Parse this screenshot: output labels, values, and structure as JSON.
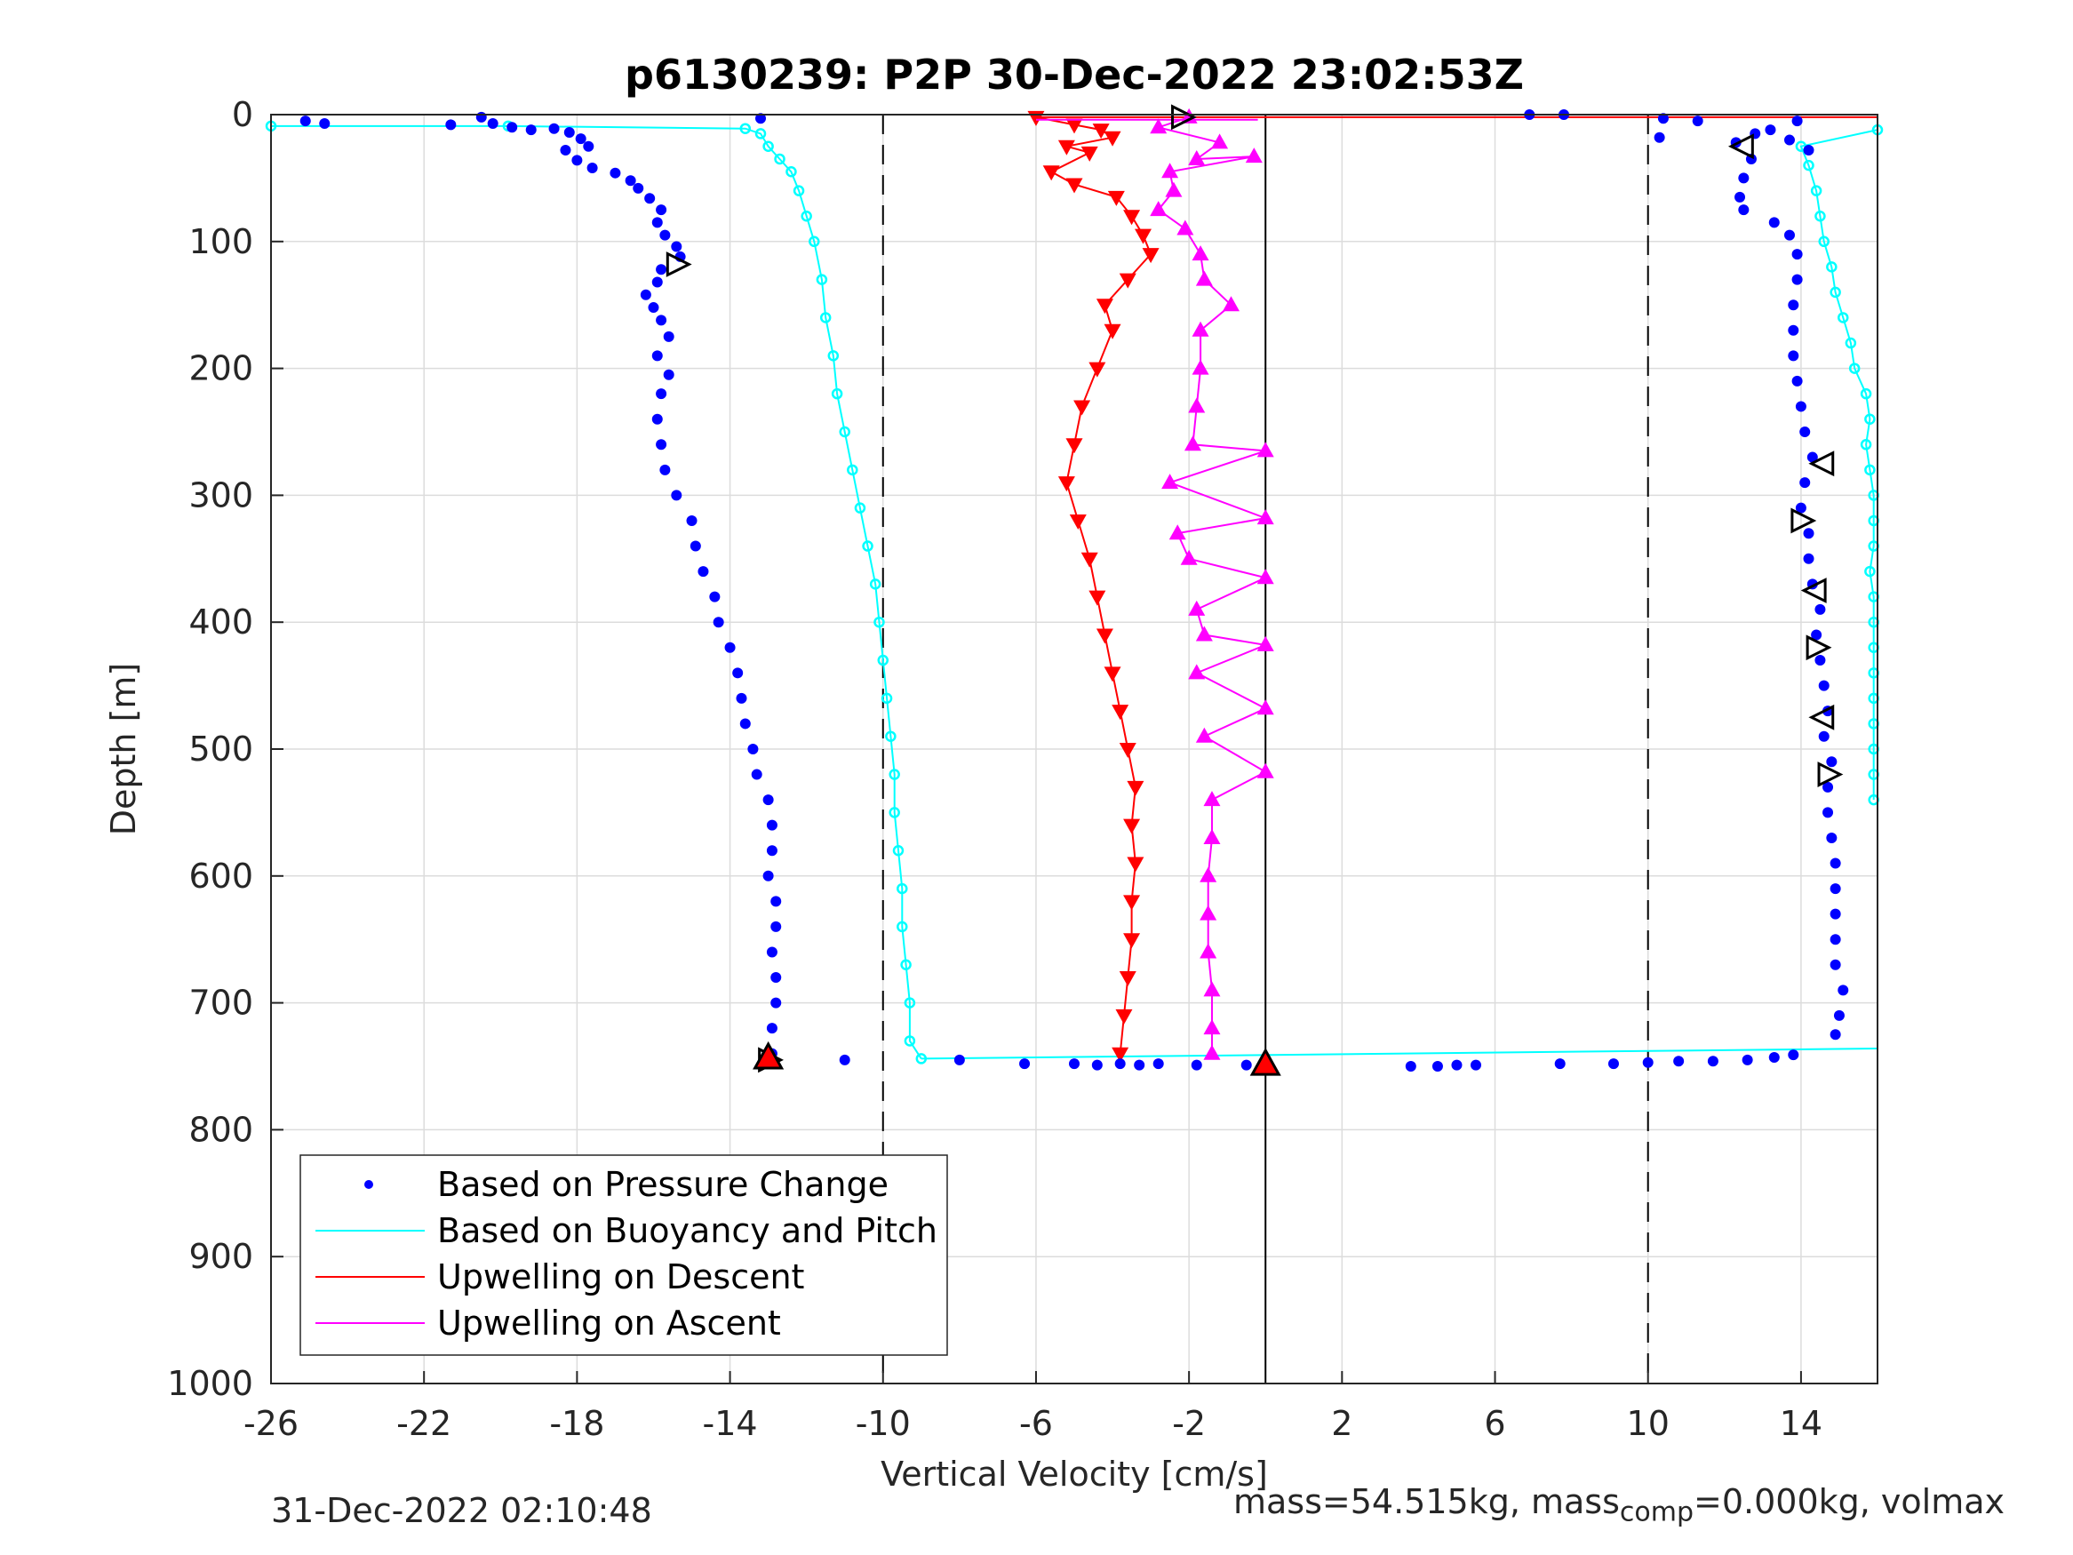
{
  "chart_data": {
    "type": "scatter",
    "title": "p6130239: P2P 30-Dec-2022 23:02:53Z",
    "xlabel": "Vertical Velocity [cm/s]",
    "ylabel": "Depth [m]",
    "xlim": [
      -26,
      16
    ],
    "ylim": [
      0,
      1000
    ],
    "y_reversed": true,
    "x_ticks": [
      -26,
      -22,
      -18,
      -14,
      -10,
      -6,
      -2,
      2,
      6,
      10,
      14
    ],
    "y_ticks": [
      0,
      100,
      200,
      300,
      400,
      500,
      600,
      700,
      800,
      900,
      1000
    ],
    "grid": true,
    "legend_position": "bottom-left",
    "reference_lines": [
      {
        "x": -10,
        "style": "dashed"
      },
      {
        "x": 0,
        "style": "solid"
      },
      {
        "x": 10,
        "style": "dashed"
      }
    ],
    "series": [
      {
        "name": "Based on Pressure Change",
        "color": "#0000ff",
        "marker": "dot",
        "descent": [
          [
            -25.1,
            5
          ],
          [
            -24.6,
            7
          ],
          [
            -20.5,
            2
          ],
          [
            -21.3,
            8
          ],
          [
            -20.2,
            7
          ],
          [
            -19.7,
            10
          ],
          [
            -19.2,
            12
          ],
          [
            -18.6,
            11
          ],
          [
            -18.2,
            14
          ],
          [
            -17.9,
            19
          ],
          [
            -17.7,
            25
          ],
          [
            -18.3,
            28
          ],
          [
            -18.0,
            36
          ],
          [
            -17.6,
            42
          ],
          [
            -17.0,
            46
          ],
          [
            -16.6,
            52
          ],
          [
            -16.4,
            58
          ],
          [
            -16.1,
            66
          ],
          [
            -15.8,
            75
          ],
          [
            -15.9,
            85
          ],
          [
            -15.7,
            95
          ],
          [
            -15.4,
            104
          ],
          [
            -15.3,
            112
          ],
          [
            -15.8,
            122
          ],
          [
            -15.9,
            132
          ],
          [
            -16.2,
            142
          ],
          [
            -16.0,
            152
          ],
          [
            -15.8,
            162
          ],
          [
            -15.6,
            175
          ],
          [
            -15.9,
            190
          ],
          [
            -15.6,
            205
          ],
          [
            -15.8,
            220
          ],
          [
            -15.9,
            240
          ],
          [
            -15.8,
            260
          ],
          [
            -15.7,
            280
          ],
          [
            -15.4,
            300
          ],
          [
            -15.0,
            320
          ],
          [
            -14.9,
            340
          ],
          [
            -14.7,
            360
          ],
          [
            -14.4,
            380
          ],
          [
            -14.3,
            400
          ],
          [
            -14.0,
            420
          ],
          [
            -13.8,
            440
          ],
          [
            -13.7,
            460
          ],
          [
            -13.6,
            480
          ],
          [
            -13.4,
            500
          ],
          [
            -13.3,
            520
          ],
          [
            -13.0,
            540
          ],
          [
            -12.9,
            560
          ],
          [
            -12.9,
            580
          ],
          [
            -13.0,
            600
          ],
          [
            -12.8,
            620
          ],
          [
            -12.8,
            640
          ],
          [
            -12.9,
            660
          ],
          [
            -12.8,
            680
          ],
          [
            -12.8,
            700
          ],
          [
            -12.9,
            720
          ],
          [
            -12.9,
            740
          ]
        ],
        "ascent": [
          [
            12.3,
            22
          ],
          [
            12.7,
            35
          ],
          [
            12.5,
            50
          ],
          [
            12.4,
            65
          ],
          [
            12.5,
            75
          ],
          [
            13.3,
            85
          ],
          [
            13.7,
            95
          ],
          [
            13.9,
            110
          ],
          [
            13.9,
            130
          ],
          [
            13.8,
            150
          ],
          [
            13.8,
            170
          ],
          [
            13.8,
            190
          ],
          [
            13.9,
            210
          ],
          [
            14.0,
            230
          ],
          [
            14.1,
            250
          ],
          [
            14.3,
            270
          ],
          [
            14.1,
            290
          ],
          [
            14.0,
            310
          ],
          [
            14.2,
            330
          ],
          [
            14.2,
            350
          ],
          [
            14.3,
            370
          ],
          [
            14.5,
            390
          ],
          [
            14.4,
            410
          ],
          [
            14.5,
            430
          ],
          [
            14.6,
            450
          ],
          [
            14.7,
            470
          ],
          [
            14.6,
            490
          ],
          [
            14.8,
            510
          ],
          [
            14.7,
            530
          ],
          [
            14.7,
            550
          ],
          [
            14.8,
            570
          ],
          [
            14.9,
            590
          ],
          [
            14.9,
            610
          ],
          [
            14.9,
            630
          ],
          [
            14.9,
            650
          ],
          [
            14.9,
            670
          ],
          [
            15.1,
            690
          ],
          [
            15.0,
            710
          ],
          [
            14.9,
            725
          ]
        ],
        "bottom": [
          [
            -11,
            745
          ],
          [
            -8,
            745
          ],
          [
            -6.3,
            748
          ],
          [
            -5,
            748
          ],
          [
            -4.4,
            749
          ],
          [
            -3.8,
            748
          ],
          [
            -3.3,
            749
          ],
          [
            -2.8,
            748
          ],
          [
            -1.8,
            749
          ],
          [
            -0.5,
            749
          ],
          [
            3.8,
            750
          ],
          [
            4.5,
            750
          ],
          [
            5,
            749
          ],
          [
            5.5,
            749
          ],
          [
            7.7,
            748
          ],
          [
            9.1,
            748
          ],
          [
            10.0,
            747
          ],
          [
            10.8,
            746
          ],
          [
            11.7,
            746
          ],
          [
            12.6,
            745
          ],
          [
            13.3,
            743
          ],
          [
            13.8,
            741
          ]
        ],
        "surface": [
          [
            6.9,
            0
          ],
          [
            7.8,
            0
          ],
          [
            -13.2,
            3
          ],
          [
            10.4,
            3
          ],
          [
            11.3,
            5
          ],
          [
            10.3,
            18
          ],
          [
            12.8,
            15
          ],
          [
            13.7,
            20
          ],
          [
            14.2,
            28
          ],
          [
            13.9,
            5
          ],
          [
            13.2,
            12
          ]
        ]
      },
      {
        "name": "Based on Buoyancy and Pitch",
        "color": "#00ffff",
        "marker": "circle-line",
        "descent": [
          [
            -26.0,
            9
          ],
          [
            -19.8,
            9
          ],
          [
            -13.6,
            11
          ],
          [
            -13.2,
            15
          ],
          [
            -13.0,
            25
          ],
          [
            -12.7,
            35
          ],
          [
            -12.4,
            45
          ],
          [
            -12.2,
            60
          ],
          [
            -12.0,
            80
          ],
          [
            -11.8,
            100
          ],
          [
            -11.6,
            130
          ],
          [
            -11.5,
            160
          ],
          [
            -11.3,
            190
          ],
          [
            -11.2,
            220
          ],
          [
            -11.0,
            250
          ],
          [
            -10.8,
            280
          ],
          [
            -10.6,
            310
          ],
          [
            -10.4,
            340
          ],
          [
            -10.2,
            370
          ],
          [
            -10.1,
            400
          ],
          [
            -10.0,
            430
          ],
          [
            -9.9,
            460
          ],
          [
            -9.8,
            490
          ],
          [
            -9.7,
            520
          ],
          [
            -9.7,
            550
          ],
          [
            -9.6,
            580
          ],
          [
            -9.5,
            610
          ],
          [
            -9.5,
            640
          ],
          [
            -9.4,
            670
          ],
          [
            -9.3,
            700
          ],
          [
            -9.3,
            730
          ],
          [
            -9.0,
            744
          ]
        ],
        "ascent": [
          [
            16.0,
            12
          ],
          [
            14.0,
            25
          ],
          [
            14.2,
            40
          ],
          [
            14.4,
            60
          ],
          [
            14.5,
            80
          ],
          [
            14.6,
            100
          ],
          [
            14.8,
            120
          ],
          [
            14.9,
            140
          ],
          [
            15.1,
            160
          ],
          [
            15.3,
            180
          ],
          [
            15.4,
            200
          ],
          [
            15.7,
            220
          ],
          [
            15.8,
            240
          ],
          [
            15.7,
            260
          ],
          [
            15.8,
            280
          ],
          [
            15.9,
            300
          ],
          [
            15.9,
            320
          ],
          [
            15.9,
            340
          ],
          [
            15.8,
            360
          ],
          [
            15.9,
            380
          ],
          [
            15.9,
            400
          ],
          [
            15.9,
            420
          ],
          [
            15.9,
            440
          ],
          [
            15.9,
            460
          ],
          [
            15.9,
            480
          ],
          [
            15.9,
            500
          ],
          [
            15.9,
            520
          ],
          [
            15.9,
            540
          ]
        ],
        "connector": [
          [
            -9.0,
            744
          ],
          [
            16.0,
            736
          ]
        ]
      },
      {
        "name": "Upwelling on Descent",
        "color": "#ff0000",
        "marker": "triangle-down",
        "points": [
          [
            -6.0,
            2
          ],
          [
            -5.0,
            8
          ],
          [
            -4.3,
            12
          ],
          [
            -4.0,
            18
          ],
          [
            -5.2,
            25
          ],
          [
            -4.6,
            30
          ],
          [
            -5.6,
            45
          ],
          [
            -5.0,
            55
          ],
          [
            -3.9,
            65
          ],
          [
            -3.5,
            80
          ],
          [
            -3.2,
            95
          ],
          [
            -3.0,
            110
          ],
          [
            -3.6,
            130
          ],
          [
            -4.2,
            150
          ],
          [
            -4.0,
            170
          ],
          [
            -4.4,
            200
          ],
          [
            -4.8,
            230
          ],
          [
            -5.0,
            260
          ],
          [
            -5.2,
            290
          ],
          [
            -4.9,
            320
          ],
          [
            -4.6,
            350
          ],
          [
            -4.4,
            380
          ],
          [
            -4.2,
            410
          ],
          [
            -4.0,
            440
          ],
          [
            -3.8,
            470
          ],
          [
            -3.6,
            500
          ],
          [
            -3.4,
            530
          ],
          [
            -3.5,
            560
          ],
          [
            -3.4,
            590
          ],
          [
            -3.5,
            620
          ],
          [
            -3.5,
            650
          ],
          [
            -3.6,
            680
          ],
          [
            -3.7,
            710
          ],
          [
            -3.8,
            740
          ]
        ],
        "line": [
          [
            -6.0,
            2
          ],
          [
            16.0,
            2
          ]
        ]
      },
      {
        "name": "Upwelling on Ascent",
        "color": "#ff00ff",
        "marker": "triangle-up",
        "points": [
          [
            -2.0,
            2
          ],
          [
            -2.8,
            10
          ],
          [
            -1.2,
            22
          ],
          [
            -1.8,
            35
          ],
          [
            -0.3,
            33
          ],
          [
            -2.5,
            45
          ],
          [
            -2.4,
            60
          ],
          [
            -2.8,
            75
          ],
          [
            -2.1,
            90
          ],
          [
            -1.7,
            110
          ],
          [
            -1.6,
            130
          ],
          [
            -0.9,
            150
          ],
          [
            -1.7,
            170
          ],
          [
            -1.7,
            200
          ],
          [
            -1.8,
            230
          ],
          [
            -1.9,
            260
          ],
          [
            0.0,
            265
          ],
          [
            -2.5,
            290
          ],
          [
            0.0,
            318
          ],
          [
            -2.3,
            330
          ],
          [
            -2.0,
            350
          ],
          [
            0.0,
            365
          ],
          [
            -1.8,
            390
          ],
          [
            -1.6,
            410
          ],
          [
            0.0,
            418
          ],
          [
            -1.8,
            440
          ],
          [
            0.0,
            468
          ],
          [
            -1.6,
            490
          ],
          [
            0.0,
            518
          ],
          [
            -1.4,
            540
          ],
          [
            -1.4,
            570
          ],
          [
            -1.5,
            600
          ],
          [
            -1.5,
            630
          ],
          [
            -1.5,
            660
          ],
          [
            -1.4,
            690
          ],
          [
            -1.4,
            720
          ],
          [
            -1.4,
            740
          ]
        ],
        "line": [
          [
            -6.0,
            4
          ],
          [
            -0.2,
            4
          ]
        ]
      }
    ],
    "markers": {
      "black_right": [
        [
          -2.2,
          2
        ],
        [
          -15.4,
          118
        ],
        [
          14.0,
          320
        ],
        [
          14.4,
          420
        ],
        [
          14.7,
          520
        ],
        [
          -13.0,
          745
        ]
      ],
      "black_left": [
        [
          12.5,
          25
        ],
        [
          14.6,
          275
        ],
        [
          14.4,
          375
        ],
        [
          14.6,
          475
        ]
      ],
      "red_up": [
        [
          0.0,
          748
        ],
        [
          -13.0,
          743
        ]
      ]
    },
    "legend": [
      "Based on Pressure Change",
      "Based on Buoyancy and Pitch",
      "Upwelling on Descent",
      "Upwelling on Ascent"
    ]
  },
  "footer": {
    "timestamp": "31-Dec-2022 02:10:48",
    "mass_prefix": "mass=54.515kg, mass",
    "mass_sub": "comp",
    "mass_suffix": "=0.000kg, volmax"
  }
}
